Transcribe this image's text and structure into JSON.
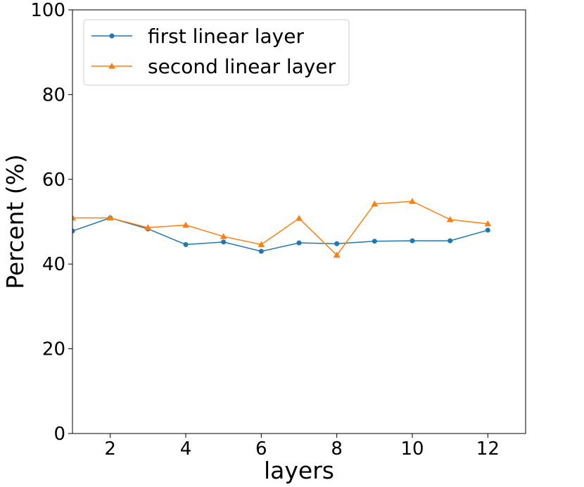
{
  "chart_data": {
    "type": "line",
    "title": "",
    "xlabel": "layers",
    "ylabel": "Percent (%)",
    "xlim": [
      1,
      13
    ],
    "ylim": [
      0,
      100
    ],
    "xticks": [
      2,
      4,
      6,
      8,
      10,
      12
    ],
    "yticks": [
      0,
      20,
      40,
      60,
      80,
      100
    ],
    "x": [
      1,
      2,
      3,
      4,
      5,
      6,
      7,
      8,
      9,
      10,
      11,
      12
    ],
    "grid": false,
    "legend_position": "top-left",
    "series": [
      {
        "name": "first linear layer",
        "color": "#1f77b4",
        "marker": "circle",
        "values": [
          47.8,
          50.9,
          48.3,
          44.6,
          45.2,
          43.0,
          45.0,
          44.8,
          45.4,
          45.5,
          45.5,
          48.0
        ]
      },
      {
        "name": "second linear layer",
        "color": "#ff7f0e",
        "marker": "triangle",
        "values": [
          50.9,
          50.9,
          48.6,
          49.2,
          46.5,
          44.6,
          50.8,
          42.1,
          54.2,
          54.8,
          50.5,
          49.5
        ]
      }
    ]
  }
}
